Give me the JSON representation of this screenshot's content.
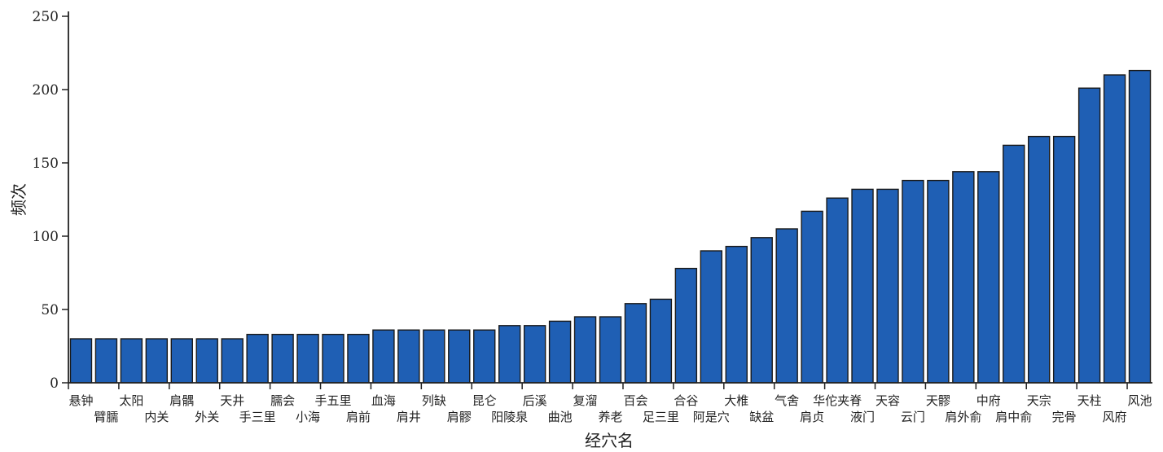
{
  "chart_data": {
    "type": "bar",
    "xlabel": "经穴名",
    "ylabel": "频次",
    "ylim": [
      0,
      250
    ],
    "yticks": [
      0,
      50,
      100,
      150,
      200,
      250
    ],
    "grid": false,
    "bar_color": "#1f5fb4",
    "categories": [
      "悬钟",
      "臂臑",
      "太阳",
      "内关",
      "肩髃",
      "外关",
      "天井",
      "手三里",
      "臑会",
      "小海",
      "手五里",
      "肩前",
      "血海",
      "肩井",
      "列缺",
      "肩髎",
      "昆仑",
      "阳陵泉",
      "后溪",
      "曲池",
      "复溜",
      "养老",
      "百会",
      "足三里",
      "合谷",
      "阿是穴",
      "大椎",
      "缺盆",
      "气舍",
      "肩贞",
      "华佗夹脊",
      "液门",
      "天容",
      "云门",
      "天髎",
      "肩外俞",
      "中府",
      "肩中俞",
      "天宗",
      "完骨",
      "天柱",
      "风府",
      "风池"
    ],
    "values": [
      30,
      30,
      30,
      30,
      30,
      30,
      30,
      33,
      33,
      33,
      33,
      33,
      36,
      36,
      36,
      36,
      36,
      39,
      39,
      42,
      45,
      45,
      54,
      57,
      78,
      90,
      93,
      99,
      105,
      117,
      126,
      132,
      132,
      138,
      138,
      144,
      144,
      162,
      168,
      168,
      201,
      210,
      213
    ]
  }
}
